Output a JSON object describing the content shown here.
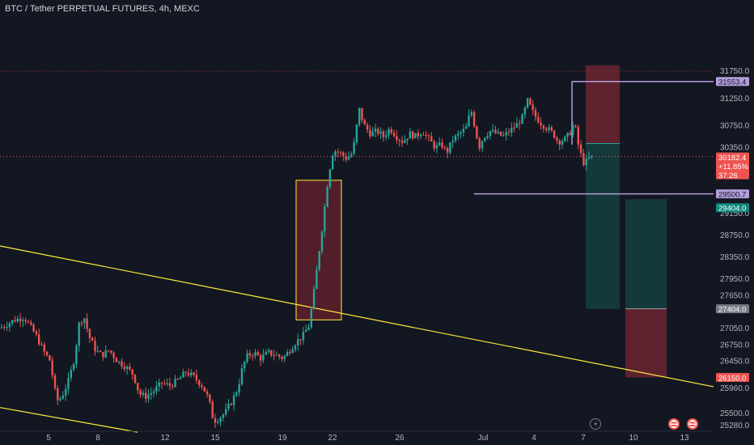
{
  "title": "BTC / Tether PERPETUAL FUTURES, 4h, MEXC",
  "colors": {
    "bg": "#131722",
    "up": "#26a69a",
    "down": "#ef5350",
    "trendline": "#ffeb3b",
    "level": "#b39ddb",
    "axis_text": "#b2b5be"
  },
  "chart_data": {
    "type": "candlestick",
    "title": "BTC / Tether PERPETUAL FUTURES, 4h, MEXC",
    "ylim": [
      25150,
      32400
    ],
    "y_ticks": [
      25280,
      25500,
      25960,
      26150,
      26450,
      26750,
      27050,
      27400,
      27650,
      27950,
      28350,
      28750,
      29150,
      29500,
      29950,
      30350,
      30750,
      31250,
      31750
    ],
    "x_ticks": [
      "5",
      "8",
      "12",
      "15",
      "19",
      "22",
      "26",
      "Jul",
      "4",
      "7",
      "10",
      "13"
    ],
    "price_tags": [
      {
        "label": "31553.4",
        "type": "level"
      },
      {
        "label": "30182.4",
        "type": "current"
      },
      {
        "label": "+11.85%",
        "type": "current"
      },
      {
        "label": "37:26",
        "type": "current"
      },
      {
        "label": "29500.7",
        "type": "level"
      },
      {
        "label": "29404.0",
        "type": "target"
      },
      {
        "label": "27404.0",
        "type": "entry"
      },
      {
        "label": "26150.0",
        "type": "stop"
      }
    ],
    "levels": [
      31553.4,
      29500.7
    ],
    "current_price": 30182.4,
    "short_position": {
      "entry": 30420,
      "stop": 31850,
      "target": 27400
    },
    "long_position": {
      "entry": 27404.0,
      "stop": 26150.0,
      "target": 29404.0
    },
    "consolidation_box": {
      "low": 27200,
      "high": 29750
    },
    "trendline_upper": [
      {
        "x": "start",
        "y": 28550
      },
      {
        "x": "end",
        "y": 25980
      }
    ],
    "trendline_lower": [
      {
        "x": "start",
        "y": 25600
      },
      {
        "x": "15",
        "y": 25150
      }
    ],
    "price_path": [
      [
        0,
        27050
      ],
      [
        18,
        27200
      ],
      [
        30,
        27250
      ],
      [
        45,
        26900
      ],
      [
        55,
        26600
      ],
      [
        62,
        26450
      ],
      [
        68,
        25900
      ],
      [
        72,
        25700
      ],
      [
        78,
        25850
      ],
      [
        85,
        26100
      ],
      [
        92,
        26500
      ],
      [
        98,
        27150
      ],
      [
        104,
        27250
      ],
      [
        110,
        26900
      ],
      [
        118,
        26650
      ],
      [
        126,
        26550
      ],
      [
        135,
        26650
      ],
      [
        145,
        26450
      ],
      [
        155,
        26350
      ],
      [
        165,
        26200
      ],
      [
        172,
        25850
      ],
      [
        180,
        25800
      ],
      [
        190,
        25900
      ],
      [
        200,
        26050
      ],
      [
        210,
        26000
      ],
      [
        220,
        26100
      ],
      [
        230,
        26250
      ],
      [
        240,
        26150
      ],
      [
        250,
        26000
      ],
      [
        258,
        25750
      ],
      [
        264,
        25350
      ],
      [
        270,
        25400
      ],
      [
        278,
        25500
      ],
      [
        286,
        25700
      ],
      [
        294,
        25950
      ],
      [
        300,
        26350
      ],
      [
        306,
        26550
      ],
      [
        314,
        26600
      ],
      [
        322,
        26500
      ],
      [
        332,
        26600
      ],
      [
        342,
        26550
      ],
      [
        350,
        26500
      ],
      [
        358,
        26650
      ],
      [
        366,
        26800
      ],
      [
        374,
        26900
      ],
      [
        382,
        27100
      ],
      [
        388,
        27700
      ],
      [
        394,
        28400
      ],
      [
        400,
        29100
      ],
      [
        406,
        29850
      ],
      [
        412,
        30300
      ],
      [
        420,
        30250
      ],
      [
        428,
        30150
      ],
      [
        436,
        30250
      ],
      [
        444,
        31050
      ],
      [
        450,
        30750
      ],
      [
        458,
        30600
      ],
      [
        466,
        30650
      ],
      [
        474,
        30550
      ],
      [
        482,
        30700
      ],
      [
        490,
        30550
      ],
      [
        498,
        30450
      ],
      [
        506,
        30600
      ],
      [
        514,
        30550
      ],
      [
        522,
        30650
      ],
      [
        530,
        30500
      ],
      [
        538,
        30350
      ],
      [
        546,
        30400
      ],
      [
        552,
        30250
      ],
      [
        560,
        30500
      ],
      [
        568,
        30600
      ],
      [
        576,
        30700
      ],
      [
        582,
        31050
      ],
      [
        588,
        30650
      ],
      [
        592,
        30350
      ],
      [
        598,
        30550
      ],
      [
        606,
        30650
      ],
      [
        614,
        30600
      ],
      [
        622,
        30550
      ],
      [
        630,
        30650
      ],
      [
        638,
        30750
      ],
      [
        646,
        30900
      ],
      [
        652,
        31200
      ],
      [
        660,
        30950
      ],
      [
        668,
        30800
      ],
      [
        676,
        30700
      ],
      [
        684,
        30600
      ],
      [
        690,
        30450
      ],
      [
        698,
        30500
      ],
      [
        704,
        30600
      ],
      [
        710,
        30800
      ],
      [
        716,
        30300
      ],
      [
        722,
        30050
      ],
      [
        728,
        30150
      ],
      [
        734,
        30182
      ]
    ]
  }
}
